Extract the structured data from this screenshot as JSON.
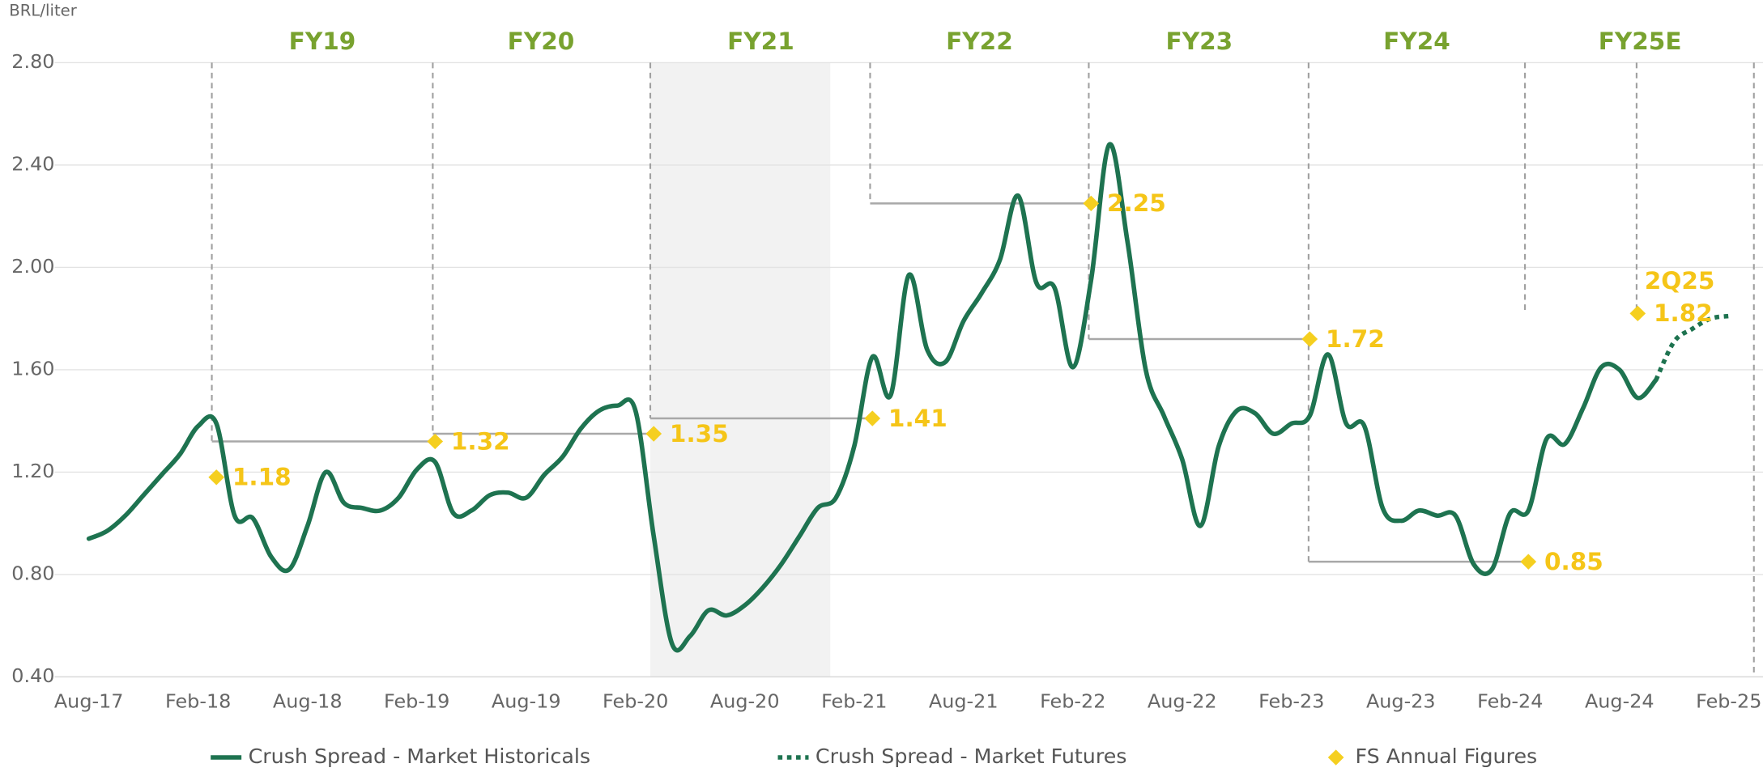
{
  "chart_data": {
    "type": "line",
    "y_label": "BRL/liter",
    "period_labels": [
      "FY19",
      "FY20",
      "FY21",
      "FY22",
      "FY23",
      "FY24",
      "FY25E"
    ],
    "annotation": "2Q25",
    "categories": [
      "Aug-17",
      null,
      null,
      null,
      null,
      null,
      "Feb-18",
      null,
      null,
      null,
      null,
      null,
      "Aug-18",
      null,
      null,
      null,
      null,
      null,
      "Feb-19",
      null,
      null,
      null,
      null,
      null,
      "Aug-19",
      null,
      null,
      null,
      null,
      null,
      "Feb-20",
      null,
      null,
      null,
      null,
      null,
      "Aug-20",
      null,
      null,
      null,
      null,
      null,
      "Feb-21",
      null,
      null,
      null,
      null,
      null,
      "Aug-21",
      null,
      null,
      null,
      null,
      null,
      "Feb-22",
      null,
      null,
      null,
      null,
      null,
      "Aug-22",
      null,
      null,
      null,
      null,
      null,
      "Feb-23",
      null,
      null,
      null,
      null,
      null,
      "Aug-23",
      null,
      null,
      null,
      null,
      null,
      "Feb-24",
      null,
      null,
      null,
      null,
      null,
      "Aug-24",
      null,
      null,
      null,
      null,
      null,
      "Feb-25"
    ],
    "series": [
      {
        "name": "Crush Spread - Market Historicals",
        "color": "#1e7350",
        "style": "solid",
        "values": [
          0.94,
          0.97,
          1.03,
          1.11,
          1.19,
          1.27,
          1.38,
          1.39,
          1.03,
          1.02,
          0.87,
          0.82,
          0.99,
          1.2,
          1.08,
          1.06,
          1.05,
          1.1,
          1.21,
          1.24,
          1.04,
          1.05,
          1.11,
          1.12,
          1.1,
          1.19,
          1.26,
          1.37,
          1.44,
          1.46,
          1.44,
          0.95,
          0.53,
          0.56,
          0.66,
          0.64,
          0.68,
          0.75,
          0.84,
          0.95,
          1.06,
          1.1,
          1.3,
          1.65,
          1.5,
          1.97,
          1.68,
          1.63,
          1.79,
          1.9,
          2.03,
          2.28,
          1.94,
          1.92,
          1.61,
          1.95,
          2.48,
          2.1,
          1.6,
          1.42,
          1.25,
          0.99,
          1.3,
          1.44,
          1.43,
          1.35,
          1.39,
          1.42,
          1.66,
          1.39,
          1.38,
          1.06,
          1.01,
          1.05,
          1.03,
          1.03,
          0.84,
          0.82,
          1.04,
          1.05,
          1.33,
          1.31,
          1.45,
          1.61,
          1.6,
          1.49,
          1.56,
          null,
          null,
          null,
          null
        ]
      },
      {
        "name": "Crush Spread - Market Futures",
        "color": "#1e7350",
        "style": "dotted",
        "values": [
          null,
          null,
          null,
          null,
          null,
          null,
          null,
          null,
          null,
          null,
          null,
          null,
          null,
          null,
          null,
          null,
          null,
          null,
          null,
          null,
          null,
          null,
          null,
          null,
          null,
          null,
          null,
          null,
          null,
          null,
          null,
          null,
          null,
          null,
          null,
          null,
          null,
          null,
          null,
          null,
          null,
          null,
          null,
          null,
          null,
          null,
          null,
          null,
          null,
          null,
          null,
          null,
          null,
          null,
          null,
          null,
          null,
          null,
          null,
          null,
          null,
          null,
          null,
          null,
          null,
          null,
          null,
          null,
          null,
          null,
          null,
          null,
          null,
          null,
          null,
          null,
          null,
          null,
          null,
          null,
          null,
          null,
          null,
          null,
          null,
          null,
          1.56,
          1.71,
          1.76,
          1.8,
          1.81
        ]
      },
      {
        "name": "FS Annual Figures",
        "color": "#f5cf1f",
        "style": "marker",
        "values": [
          null,
          null,
          null,
          null,
          null,
          null,
          null,
          1.18,
          null,
          null,
          null,
          null,
          null,
          null,
          null,
          null,
          null,
          null,
          null,
          1.32,
          null,
          null,
          null,
          null,
          null,
          null,
          null,
          null,
          null,
          null,
          null,
          1.35,
          null,
          null,
          null,
          null,
          null,
          null,
          null,
          null,
          null,
          null,
          null,
          1.41,
          null,
          null,
          null,
          null,
          null,
          null,
          null,
          null,
          null,
          null,
          null,
          2.25,
          null,
          null,
          null,
          null,
          null,
          null,
          null,
          null,
          null,
          null,
          null,
          1.72,
          null,
          null,
          null,
          null,
          null,
          null,
          null,
          null,
          null,
          null,
          null,
          0.85,
          null,
          null,
          null,
          null,
          null,
          1.82,
          null,
          null,
          null,
          null,
          null
        ]
      }
    ],
    "ylim": [
      0.4,
      2.8
    ],
    "yticks": [
      {
        "value": 0.4,
        "label": "0.40"
      },
      {
        "value": 0.8,
        "label": "0.80"
      },
      {
        "value": 1.2,
        "label": "1.20"
      },
      {
        "value": 1.6,
        "label": "1.60"
      },
      {
        "value": 2.0,
        "label": "2.00"
      },
      {
        "value": 2.4,
        "label": "2.40"
      },
      {
        "value": 2.8,
        "label": "2.80"
      }
    ],
    "grid": true,
    "legend": "bottom"
  }
}
